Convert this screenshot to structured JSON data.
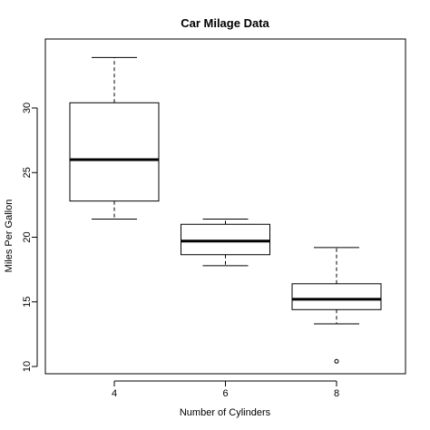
{
  "chart_data": {
    "type": "box",
    "title": "Car Milage Data",
    "xlabel": "Number of Cylinders",
    "ylabel": "Miles Per Gallon",
    "categories": [
      "4",
      "6",
      "8"
    ],
    "yticks": [
      10,
      15,
      20,
      25,
      30
    ],
    "ylim": [
      9.5,
      35.5
    ],
    "grid": false,
    "boxes": [
      {
        "category": "4",
        "whisker_low": 21.4,
        "q1": 22.8,
        "median": 26.0,
        "q3": 30.4,
        "whisker_high": 33.9,
        "outliers": []
      },
      {
        "category": "6",
        "whisker_low": 17.8,
        "q1": 18.65,
        "median": 19.7,
        "q3": 21.0,
        "whisker_high": 21.4,
        "outliers": []
      },
      {
        "category": "8",
        "whisker_low": 13.3,
        "q1": 14.4,
        "median": 15.2,
        "q3": 16.4,
        "whisker_high": 19.2,
        "outliers": [
          10.4
        ]
      }
    ]
  }
}
